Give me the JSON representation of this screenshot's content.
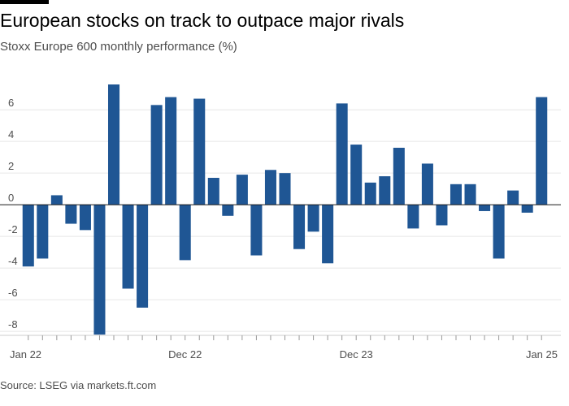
{
  "title": "European stocks on track to outpace major rivals",
  "subtitle": "Stoxx Europe 600 monthly performance (%)",
  "source": "Source: LSEG via markets.ft.com",
  "colors": {
    "bar": "#1f5694",
    "grid": "#e6e6e6",
    "zero_line": "#1a1a1a",
    "axis_text": "#4d4d4d",
    "title_rule": "#000000"
  },
  "chart_data": {
    "type": "bar",
    "title": "European stocks on track to outpace major rivals",
    "subtitle": "Stoxx Europe 600 monthly performance (%)",
    "xlabel": "",
    "ylabel": "",
    "ylim": [
      -8.2,
      7.6
    ],
    "yticks": [
      6,
      4,
      2,
      0,
      -2,
      -4,
      -6,
      -8
    ],
    "x_tick_labels": [
      {
        "index": 0,
        "label": "Jan 22"
      },
      {
        "index": 11,
        "label": "Dec 22"
      },
      {
        "index": 23,
        "label": "Dec 23"
      },
      {
        "index": 36,
        "label": "Jan 25"
      }
    ],
    "grid": true,
    "categories": [
      "Jan 2022",
      "Feb 2022",
      "Mar 2022",
      "Apr 2022",
      "May 2022",
      "Jun 2022",
      "Jul 2022",
      "Aug 2022",
      "Sep 2022",
      "Oct 2022",
      "Nov 2022",
      "Dec 2022",
      "Jan 2023",
      "Feb 2023",
      "Mar 2023",
      "Apr 2023",
      "May 2023",
      "Jun 2023",
      "Jul 2023",
      "Aug 2023",
      "Sep 2023",
      "Oct 2023",
      "Nov 2023",
      "Dec 2023",
      "Jan 2024",
      "Feb 2024",
      "Mar 2024",
      "Apr 2024",
      "May 2024",
      "Jun 2024",
      "Jul 2024",
      "Aug 2024",
      "Sep 2024",
      "Oct 2024",
      "Nov 2024",
      "Dec 2024",
      "Jan 2025"
    ],
    "values": [
      -3.9,
      -3.4,
      0.6,
      -1.2,
      -1.6,
      -8.2,
      7.6,
      -5.3,
      -6.5,
      6.3,
      6.8,
      -3.5,
      6.7,
      1.7,
      -0.7,
      1.9,
      -3.2,
      2.2,
      2.0,
      -2.8,
      -1.7,
      -3.7,
      6.4,
      3.8,
      1.4,
      1.8,
      3.6,
      -1.5,
      2.6,
      -1.3,
      1.3,
      1.3,
      -0.4,
      -3.4,
      0.9,
      -0.5,
      6.8
    ]
  }
}
